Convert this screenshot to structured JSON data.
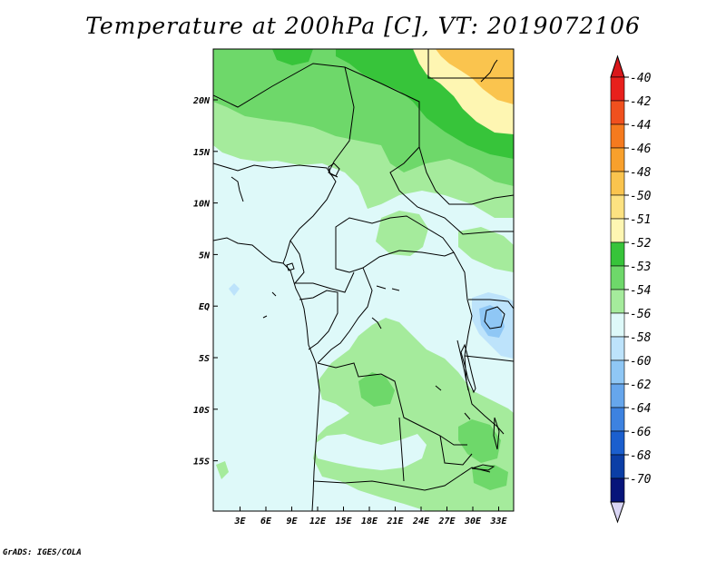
{
  "title": "Temperature at 200hPa [C], VT: 2019072106",
  "credit": "GrADS: IGES/COLA",
  "x_ticks": [
    "3E",
    "6E",
    "9E",
    "12E",
    "15E",
    "18E",
    "21E",
    "24E",
    "27E",
    "30E",
    "33E"
  ],
  "y_ticks": [
    "20N",
    "15N",
    "10N",
    "5N",
    "EQ",
    "5S",
    "10S",
    "15S"
  ],
  "colorbar": {
    "labels": [
      "-40",
      "-42",
      "-44",
      "-46",
      "-48",
      "-50",
      "-51",
      "-52",
      "-53",
      "-54",
      "-56",
      "-58",
      "-60",
      "-62",
      "-64",
      "-66",
      "-68",
      "-70"
    ],
    "colors": [
      "#e8201c",
      "#f0501e",
      "#f57a1e",
      "#f8a02c",
      "#fac44e",
      "#fde281",
      "#fef6b2",
      "#37c43a",
      "#6ed86a",
      "#a5eb9c",
      "#def9f9",
      "#bde3fb",
      "#8fc7f5",
      "#66a6ec",
      "#3d82e0",
      "#1b5fce",
      "#0b3ea6",
      "#07157a"
    ],
    "top_color": "#d9171b",
    "bottom_color": "#d9d5f4"
  },
  "map_colors": {
    "c_minus54": "#def9f9",
    "c_minus53": "#a5eb9c",
    "c_minus52": "#6ed86a",
    "c_minus51": "#37c43a",
    "c_minus50": "#fef6b2",
    "c_minus56": "#bde3fb",
    "c_minus58": "#8fc7f5"
  }
}
